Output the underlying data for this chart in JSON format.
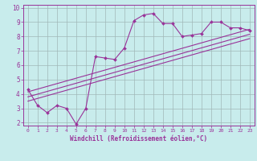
{
  "xlabel": "Windchill (Refroidissement éolien,°C)",
  "background_color": "#c8ecec",
  "grid_color": "#a0b8b8",
  "line_color": "#993399",
  "xlim": [
    -0.5,
    23.5
  ],
  "ylim": [
    1.8,
    10.2
  ],
  "xticks": [
    0,
    1,
    2,
    3,
    4,
    5,
    6,
    7,
    8,
    9,
    10,
    11,
    12,
    13,
    14,
    15,
    16,
    17,
    18,
    19,
    20,
    21,
    22,
    23
  ],
  "yticks": [
    2,
    3,
    4,
    5,
    6,
    7,
    8,
    9,
    10
  ],
  "curve_x": [
    0,
    1,
    2,
    3,
    4,
    5,
    6,
    7,
    8,
    9,
    10,
    11,
    12,
    13,
    14,
    15,
    16,
    17,
    18,
    19,
    20,
    21,
    22,
    23
  ],
  "curve_y": [
    4.3,
    3.2,
    2.7,
    3.2,
    3.0,
    1.9,
    3.0,
    6.6,
    6.5,
    6.4,
    7.2,
    9.1,
    9.5,
    9.6,
    8.9,
    8.9,
    8.0,
    8.1,
    8.2,
    9.0,
    9.0,
    8.6,
    8.6,
    8.4
  ],
  "line1_x": [
    0,
    23
  ],
  "line1_y": [
    4.15,
    8.5
  ],
  "line2_x": [
    0,
    23
  ],
  "line2_y": [
    3.5,
    7.85
  ],
  "line3_x": [
    0,
    23
  ],
  "line3_y": [
    3.8,
    8.15
  ]
}
